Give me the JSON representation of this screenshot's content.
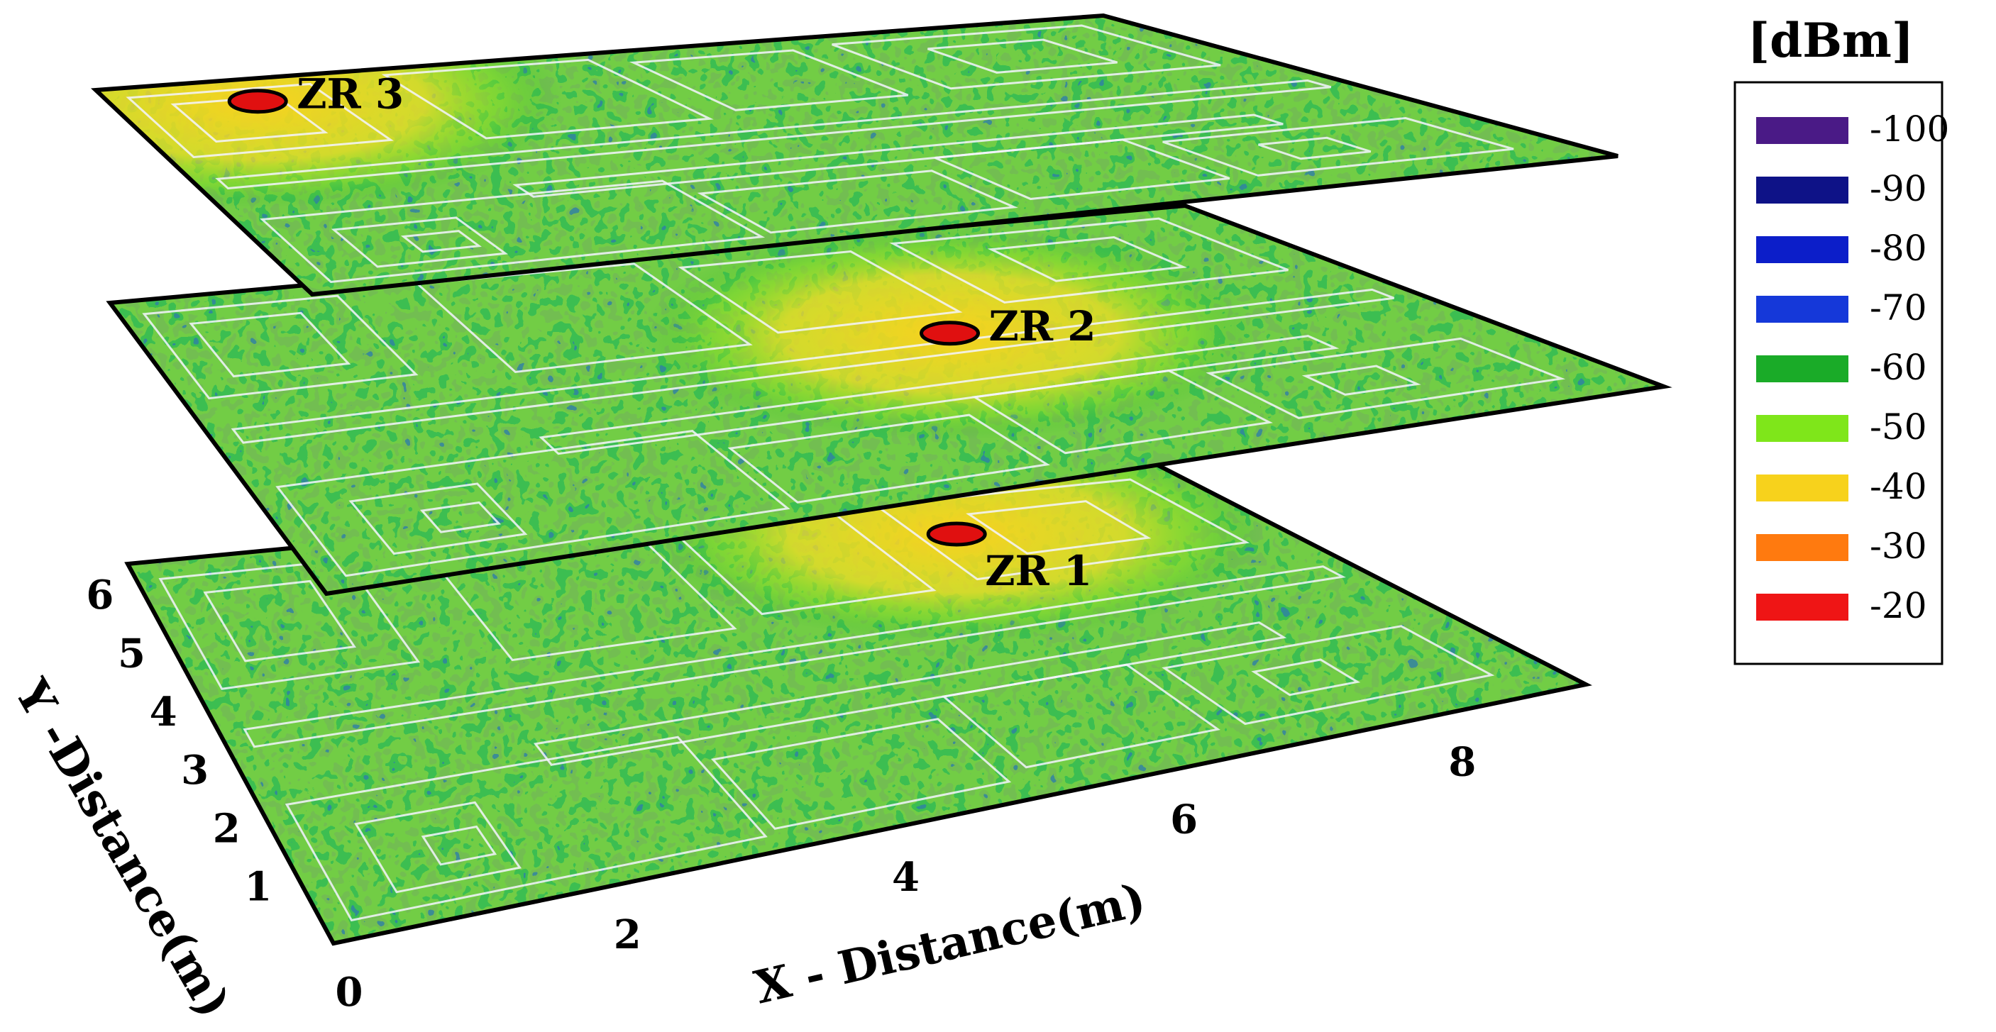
{
  "chart_data": {
    "type": "heatmap",
    "subtype": "3d-stacked-floor-heatmaps",
    "colorbar_title": "[dBm]",
    "colorbar": [
      {
        "value": -100,
        "label": "-100",
        "color": "#4a1a86"
      },
      {
        "value": -90,
        "label": "-90",
        "color": "#0e1287"
      },
      {
        "value": -80,
        "label": "-80",
        "color": "#0c1ec9"
      },
      {
        "value": -70,
        "label": "-70",
        "color": "#1538d9"
      },
      {
        "value": -60,
        "label": "-60",
        "color": "#1aab28"
      },
      {
        "value": -50,
        "label": "-50",
        "color": "#7fe61a"
      },
      {
        "value": -40,
        "label": "-40",
        "color": "#f7d21c"
      },
      {
        "value": -30,
        "label": "-30",
        "color": "#ff7a0f"
      },
      {
        "value": -20,
        "label": "-20",
        "color": "#ef1515"
      }
    ],
    "x_axis": {
      "label": "X - Distance(m)",
      "ticks": [
        "0",
        "2",
        "4",
        "6",
        "8"
      ],
      "range": [
        0,
        9
      ]
    },
    "y_axis": {
      "label": "Y -Distance(m)",
      "ticks": [
        "1",
        "2",
        "3",
        "4",
        "5",
        "6"
      ],
      "range": [
        0,
        6.5
      ]
    },
    "layers": [
      {
        "name": "floor-1",
        "receiver": {
          "label": "ZR 1",
          "x": 6.7,
          "y": 5.4
        }
      },
      {
        "name": "floor-2",
        "receiver": {
          "label": "ZR 2",
          "x": 5.7,
          "y": 3.8
        }
      },
      {
        "name": "floor-3",
        "receiver": {
          "label": "ZR 3",
          "x": 1.2,
          "y": 5.8
        }
      }
    ],
    "grid": false,
    "legend_position": "right"
  }
}
